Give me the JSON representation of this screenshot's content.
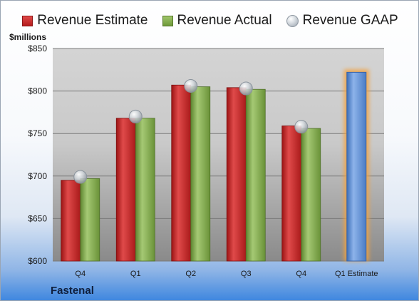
{
  "legend": {
    "estimate": "Revenue Estimate",
    "actual": "Revenue Actual",
    "gaap": "Revenue GAAP"
  },
  "unit_label": "$millions",
  "company": "Fastenal",
  "chart_data": {
    "type": "bar",
    "categories": [
      "Q4",
      "Q1",
      "Q2",
      "Q3",
      "Q4",
      "Q1 Estimate"
    ],
    "series": [
      {
        "name": "Revenue Estimate",
        "values": [
          695,
          768,
          807,
          804,
          759,
          822
        ],
        "color": "#c42828"
      },
      {
        "name": "Revenue Actual",
        "values": [
          697,
          768,
          805,
          802,
          756,
          null
        ],
        "color": "#86ad52"
      },
      {
        "name": "Revenue GAAP",
        "values": [
          699,
          770,
          806,
          803,
          758,
          null
        ],
        "color": "#b8bec5",
        "marker": "circle"
      }
    ],
    "forecast_color": "#5b8fd6",
    "highlight_color": "#f3a23c",
    "ylim": [
      600,
      850
    ],
    "yticks": [
      600,
      650,
      700,
      750,
      800,
      850
    ],
    "ytick_labels": [
      "$600",
      "$650",
      "$700",
      "$750",
      "$800",
      "$850"
    ],
    "grid": true,
    "legend_position": "top"
  }
}
